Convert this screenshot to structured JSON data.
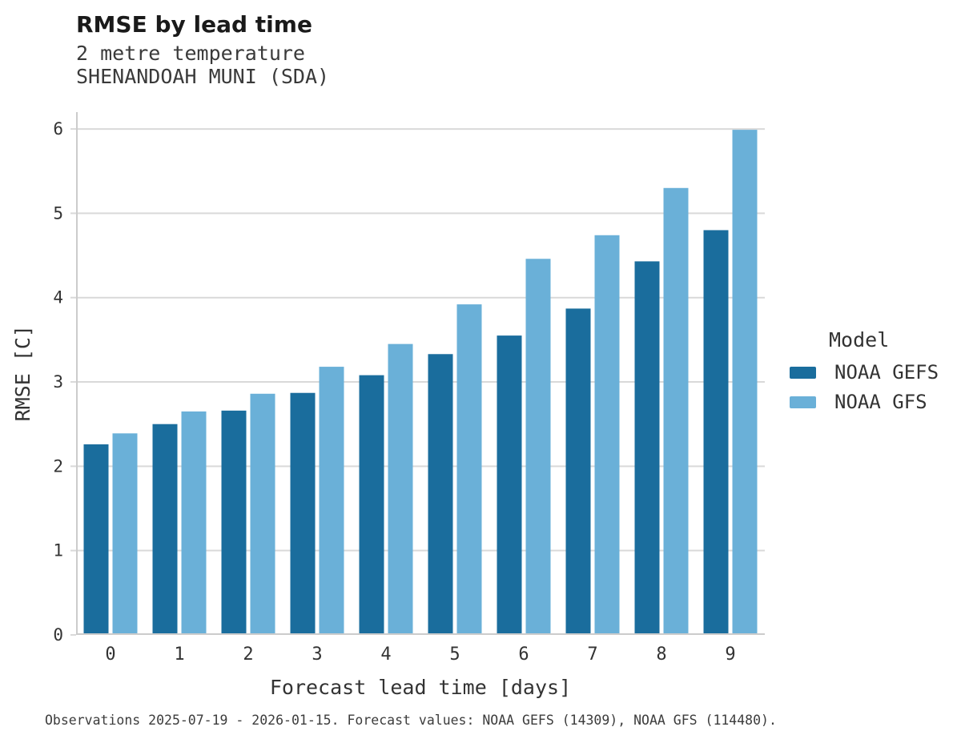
{
  "chart_data": {
    "type": "bar",
    "title": "RMSE by lead time",
    "subtitle": [
      "2 metre temperature",
      "SHENANDOAH MUNI (SDA)"
    ],
    "xlabel": "Forecast lead time [days]",
    "ylabel": "RMSE [C]",
    "categories": [
      "0",
      "1",
      "2",
      "3",
      "4",
      "5",
      "6",
      "7",
      "8",
      "9"
    ],
    "series": [
      {
        "name": "NOAA GEFS",
        "color": "#1a6d9d",
        "values": [
          2.26,
          2.5,
          2.66,
          2.87,
          3.08,
          3.33,
          3.55,
          3.87,
          4.43,
          4.8
        ]
      },
      {
        "name": "NOAA GFS",
        "color": "#6ab0d8",
        "values": [
          2.39,
          2.65,
          2.86,
          3.18,
          3.45,
          3.92,
          4.46,
          4.74,
          5.3,
          5.99
        ]
      }
    ],
    "ylim": [
      0,
      6.2
    ],
    "yticks": [
      0,
      1,
      2,
      3,
      4,
      5,
      6
    ],
    "grid": "horizontal",
    "legend_position": "right",
    "legend_title": "Model",
    "gridline_color": "#d9d9d9",
    "axis_color": "#cccccc",
    "tick_text_color": "#333333"
  },
  "footer": {
    "note": "Observations 2025-07-19 - 2026-01-15. Forecast values: NOAA GEFS (14309), NOAA GFS (114480)."
  }
}
